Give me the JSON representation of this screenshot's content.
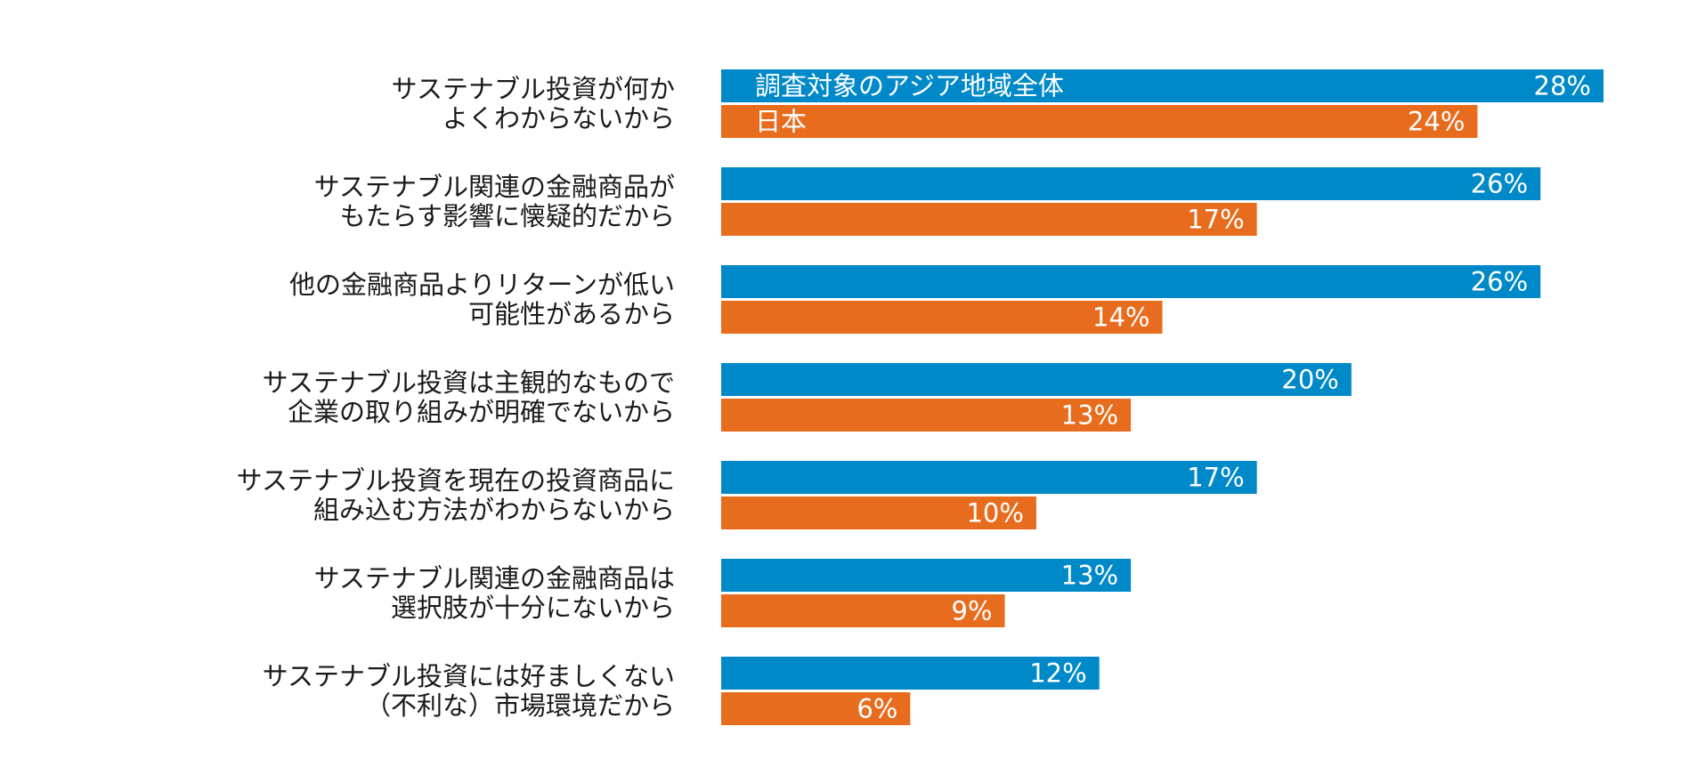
{
  "chart_data": {
    "type": "bar",
    "orientation": "horizontal",
    "title": "",
    "xlabel": "",
    "ylabel": "",
    "xlim": [
      0,
      28
    ],
    "grid": false,
    "legend": "inline-in-first-bars",
    "categories": [
      [
        "サステナブル投資が何か",
        "よくわからないから"
      ],
      [
        "サステナブル関連の金融商品が",
        "もたらす影響に懐疑的だから"
      ],
      [
        "他の金融商品よりリターンが低い",
        "可能性があるから"
      ],
      [
        "サステナブル投資は主観的なもので",
        "企業の取り組みが明確でないから"
      ],
      [
        "サステナブル投資を現在の投資商品に",
        "組み込む方法がわからないから"
      ],
      [
        "サステナブル関連の金融商品は",
        "選択肢が十分にないから"
      ],
      [
        "サステナブル投資には好ましくない",
        "（不利な）市場環境だから"
      ]
    ],
    "series": [
      {
        "name": "調査対象のアジア地域全体",
        "color": "#0089c8",
        "values": [
          28,
          26,
          26,
          20,
          17,
          13,
          12
        ]
      },
      {
        "name": "日本",
        "color": "#e86c1e",
        "values": [
          24,
          17,
          14,
          13,
          10,
          9,
          6
        ]
      }
    ],
    "value_suffix": "%"
  }
}
